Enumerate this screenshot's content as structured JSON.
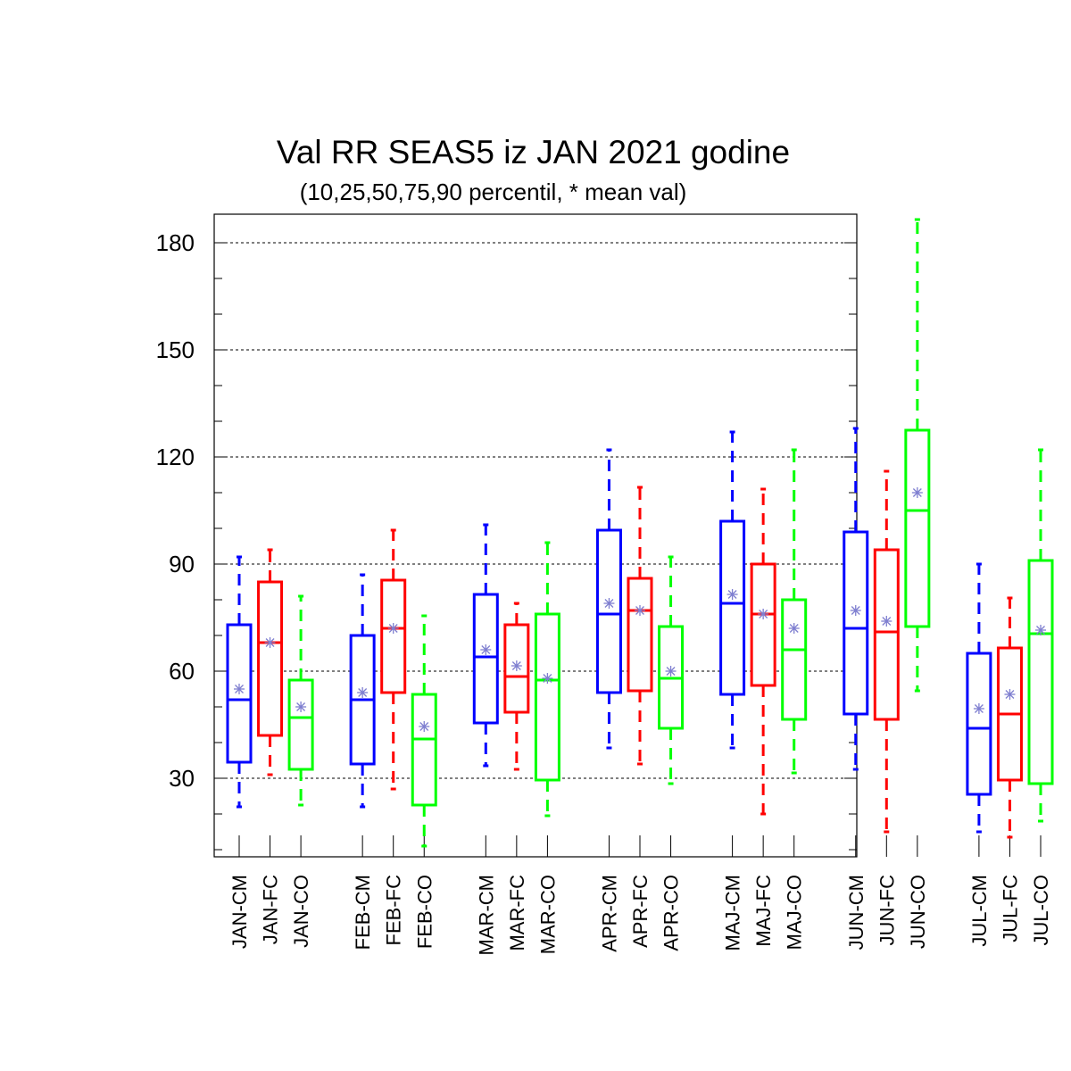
{
  "title": "Val RR SEAS5 iz JAN 2021 godine",
  "subtitle": "(10,25,50,75,90 percentil, * mean val)",
  "colors": {
    "CM": "#0000ff",
    "FC": "#ff0000",
    "CO": "#00ff00",
    "mean_marker": "#7f7fd0",
    "grid": "#000000"
  },
  "chart_data": {
    "type": "box",
    "ylim": [
      8,
      188
    ],
    "yticks": [
      30,
      60,
      90,
      120,
      150,
      180
    ],
    "grid": "horizontal dashed at major ticks",
    "boxes": [
      {
        "label": "JAN-CM",
        "group": "CM",
        "p10": 22,
        "p25": 34.5,
        "p50": 52,
        "p75": 73,
        "p90": 92,
        "mean": 55
      },
      {
        "label": "JAN-FC",
        "group": "FC",
        "p10": 31,
        "p25": 42,
        "p50": 68,
        "p75": 85,
        "p90": 94,
        "mean": 68
      },
      {
        "label": "JAN-CO",
        "group": "CO",
        "p10": 22.5,
        "p25": 32.5,
        "p50": 47,
        "p75": 57.5,
        "p90": 81,
        "mean": 50
      },
      {
        "label": "FEB-CM",
        "group": "CM",
        "p10": 22,
        "p25": 34,
        "p50": 52,
        "p75": 70,
        "p90": 87,
        "mean": 54
      },
      {
        "label": "FEB-FC",
        "group": "FC",
        "p10": 27,
        "p25": 54,
        "p50": 72,
        "p75": 85.5,
        "p90": 99.5,
        "mean": 72
      },
      {
        "label": "FEB-CO",
        "group": "CO",
        "p10": 11,
        "p25": 22.5,
        "p50": 41,
        "p75": 53.5,
        "p90": 75.5,
        "mean": 44.5
      },
      {
        "label": "MAR-CM",
        "group": "CM",
        "p10": 33.5,
        "p25": 45.5,
        "p50": 64,
        "p75": 81.5,
        "p90": 101,
        "mean": 66
      },
      {
        "label": "MAR-FC",
        "group": "FC",
        "p10": 32.5,
        "p25": 48.5,
        "p50": 58.5,
        "p75": 73,
        "p90": 79,
        "mean": 61.5
      },
      {
        "label": "MAR-CO",
        "group": "CO",
        "p10": 19.5,
        "p25": 29.5,
        "p50": 57.5,
        "p75": 76,
        "p90": 96,
        "mean": 58
      },
      {
        "label": "APR-CM",
        "group": "CM",
        "p10": 38.5,
        "p25": 54,
        "p50": 76,
        "p75": 99.5,
        "p90": 122,
        "mean": 79
      },
      {
        "label": "APR-FC",
        "group": "FC",
        "p10": 34,
        "p25": 54.5,
        "p50": 77,
        "p75": 86,
        "p90": 111.5,
        "mean": 77
      },
      {
        "label": "APR-CO",
        "group": "CO",
        "p10": 28.5,
        "p25": 44,
        "p50": 58,
        "p75": 72.5,
        "p90": 92,
        "mean": 60
      },
      {
        "label": "MAJ-CM",
        "group": "CM",
        "p10": 38.5,
        "p25": 53.5,
        "p50": 79,
        "p75": 102,
        "p90": 127,
        "mean": 81.5
      },
      {
        "label": "MAJ-FC",
        "group": "FC",
        "p10": 20,
        "p25": 56,
        "p50": 76,
        "p75": 90,
        "p90": 111,
        "mean": 76
      },
      {
        "label": "MAJ-CO",
        "group": "CO",
        "p10": 31.5,
        "p25": 46.5,
        "p50": 66,
        "p75": 80,
        "p90": 122,
        "mean": 72
      },
      {
        "label": "JUN-CM",
        "group": "CM",
        "p10": 32.5,
        "p25": 48,
        "p50": 72,
        "p75": 99,
        "p90": 128,
        "mean": 77
      },
      {
        "label": "JUN-FC",
        "group": "FC",
        "p10": 15,
        "p25": 46.5,
        "p50": 71,
        "p75": 94,
        "p90": 116,
        "mean": 74
      },
      {
        "label": "JUN-CO",
        "group": "CO",
        "p10": 54.5,
        "p25": 72.5,
        "p50": 105,
        "p75": 127.5,
        "p90": 186.5,
        "mean": 110
      },
      {
        "label": "JUL-CM",
        "group": "CM",
        "p10": 15,
        "p25": 25.5,
        "p50": 44,
        "p75": 65,
        "p90": 90,
        "mean": 49.5
      },
      {
        "label": "JUL-FC",
        "group": "FC",
        "p10": 13.5,
        "p25": 29.5,
        "p50": 48,
        "p75": 66.5,
        "p90": 80.5,
        "mean": 53.5
      },
      {
        "label": "JUL-CO",
        "group": "CO",
        "p10": 18,
        "p25": 28.5,
        "p50": 70.5,
        "p75": 91,
        "p90": 122,
        "mean": 71.5
      }
    ]
  }
}
